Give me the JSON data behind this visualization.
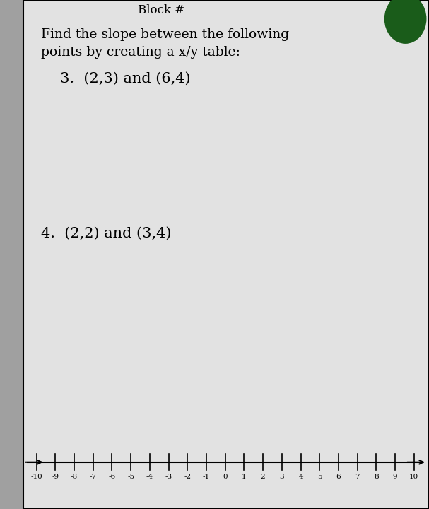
{
  "title_line1": "Find the slope between the following",
  "title_line2": "points by creating a x/y table:",
  "problem3": "3.  (2,3) and (6,4)",
  "problem4": "4.  (2,2) and (3,4)",
  "background_color": "#c8c8c8",
  "paper_color": "#e2e2e2",
  "border_color": "#000000",
  "text_color": "#000000",
  "number_line_min": -10,
  "number_line_max": 10,
  "circle_color": "#1a5c1a",
  "left_strip_color": "#a0a0a0"
}
